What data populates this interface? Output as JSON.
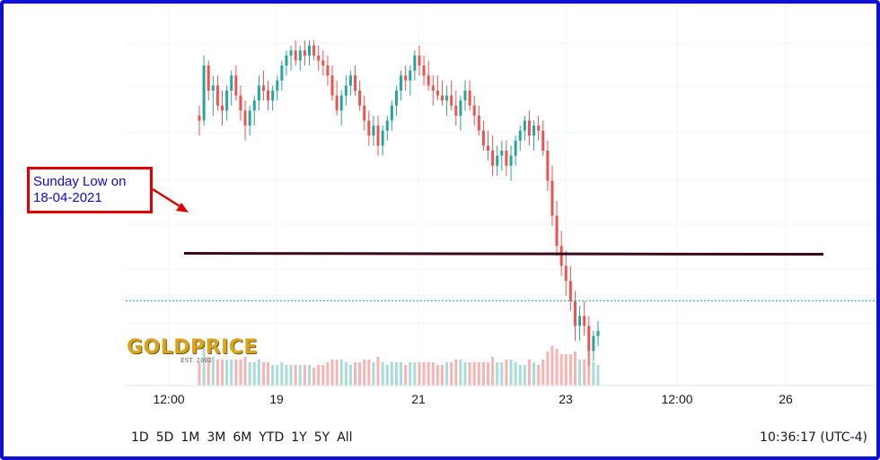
{
  "chart_data": {
    "type": "candlestick",
    "instrument": "Gold price",
    "x_tick_labels": [
      "12:00",
      "19",
      "21",
      "23",
      "12:00",
      "26"
    ],
    "annotation_level_label": "Sunday Low on 18-04-2021",
    "candles": [
      [
        1778,
        1780,
        1774,
        1777
      ],
      [
        1777,
        1790,
        1776,
        1788
      ],
      [
        1788,
        1789,
        1781,
        1783
      ],
      [
        1783,
        1786,
        1778,
        1784
      ],
      [
        1784,
        1786,
        1779,
        1780
      ],
      [
        1780,
        1783,
        1776,
        1779
      ],
      [
        1779,
        1784,
        1777,
        1783
      ],
      [
        1783,
        1787,
        1780,
        1786
      ],
      [
        1786,
        1788,
        1781,
        1782
      ],
      [
        1782,
        1784,
        1777,
        1779
      ],
      [
        1779,
        1781,
        1773,
        1776
      ],
      [
        1776,
        1780,
        1774,
        1779
      ],
      [
        1779,
        1782,
        1776,
        1781
      ],
      [
        1781,
        1786,
        1779,
        1784
      ],
      [
        1784,
        1787,
        1781,
        1783
      ],
      [
        1783,
        1785,
        1779,
        1781
      ],
      [
        1781,
        1784,
        1779,
        1783
      ],
      [
        1783,
        1786,
        1781,
        1785
      ],
      [
        1785,
        1789,
        1783,
        1788
      ],
      [
        1788,
        1791,
        1786,
        1790
      ],
      [
        1790,
        1792,
        1787,
        1791
      ],
      [
        1791,
        1793,
        1788,
        1789
      ],
      [
        1789,
        1792,
        1787,
        1791
      ],
      [
        1791,
        1793,
        1788,
        1790
      ],
      [
        1790,
        1793,
        1788,
        1792
      ],
      [
        1792,
        1793,
        1789,
        1790
      ],
      [
        1790,
        1792,
        1787,
        1789
      ],
      [
        1789,
        1791,
        1786,
        1788
      ],
      [
        1788,
        1790,
        1784,
        1786
      ],
      [
        1786,
        1788,
        1781,
        1782
      ],
      [
        1782,
        1785,
        1778,
        1779
      ],
      [
        1779,
        1783,
        1776,
        1782
      ],
      [
        1782,
        1786,
        1780,
        1784
      ],
      [
        1784,
        1787,
        1782,
        1786
      ],
      [
        1786,
        1788,
        1782,
        1783
      ],
      [
        1783,
        1785,
        1779,
        1780
      ],
      [
        1780,
        1782,
        1775,
        1777
      ],
      [
        1777,
        1779,
        1772,
        1774
      ],
      [
        1774,
        1778,
        1772,
        1776
      ],
      [
        1776,
        1778,
        1770,
        1772
      ],
      [
        1772,
        1776,
        1770,
        1775
      ],
      [
        1775,
        1778,
        1773,
        1777
      ],
      [
        1777,
        1781,
        1775,
        1780
      ],
      [
        1780,
        1784,
        1778,
        1783
      ],
      [
        1783,
        1787,
        1781,
        1786
      ],
      [
        1786,
        1788,
        1783,
        1785
      ],
      [
        1785,
        1788,
        1782,
        1787
      ],
      [
        1787,
        1791,
        1785,
        1790
      ],
      [
        1790,
        1792,
        1786,
        1788
      ],
      [
        1788,
        1790,
        1784,
        1786
      ],
      [
        1786,
        1789,
        1783,
        1784
      ],
      [
        1784,
        1786,
        1780,
        1783
      ],
      [
        1783,
        1786,
        1781,
        1782
      ],
      [
        1782,
        1785,
        1780,
        1781
      ],
      [
        1781,
        1784,
        1778,
        1782
      ],
      [
        1782,
        1785,
        1779,
        1780
      ],
      [
        1780,
        1783,
        1776,
        1778
      ],
      [
        1778,
        1782,
        1775,
        1781
      ],
      [
        1781,
        1785,
        1779,
        1783
      ],
      [
        1783,
        1785,
        1779,
        1780
      ],
      [
        1780,
        1782,
        1776,
        1778
      ],
      [
        1778,
        1780,
        1774,
        1775
      ],
      [
        1775,
        1777,
        1771,
        1772
      ],
      [
        1772,
        1775,
        1769,
        1771
      ],
      [
        1771,
        1774,
        1766,
        1768
      ],
      [
        1768,
        1772,
        1766,
        1770
      ],
      [
        1770,
        1773,
        1767,
        1771
      ],
      [
        1771,
        1773,
        1766,
        1768
      ],
      [
        1768,
        1772,
        1765,
        1770
      ],
      [
        1770,
        1774,
        1768,
        1773
      ],
      [
        1773,
        1776,
        1771,
        1775
      ],
      [
        1775,
        1778,
        1773,
        1777
      ],
      [
        1777,
        1779,
        1772,
        1774
      ],
      [
        1774,
        1777,
        1771,
        1776
      ],
      [
        1776,
        1778,
        1773,
        1775
      ],
      [
        1775,
        1777,
        1770,
        1771
      ],
      [
        1771,
        1773,
        1763,
        1765
      ],
      [
        1765,
        1768,
        1756,
        1758
      ],
      [
        1758,
        1761,
        1750,
        1752
      ],
      [
        1752,
        1755,
        1746,
        1748
      ],
      [
        1748,
        1751,
        1742,
        1745
      ],
      [
        1745,
        1748,
        1739,
        1741
      ],
      [
        1741,
        1743,
        1733,
        1736
      ],
      [
        1736,
        1740,
        1733,
        1738
      ],
      [
        1738,
        1741,
        1734,
        1736
      ],
      [
        1736,
        1738,
        1728,
        1731
      ],
      [
        1731,
        1735,
        1729,
        1734
      ],
      [
        1734,
        1737,
        1732,
        1735
      ]
    ],
    "ylim": [
      1725,
      1800
    ],
    "reference_level": 1750.5,
    "dotted_level": 1741
  },
  "logo": {
    "word": "GOLDPRICE",
    "est": "EST. 2002"
  },
  "toolbar": {
    "ranges": [
      "1D",
      "5D",
      "1M",
      "3M",
      "6M",
      "YTD",
      "1Y",
      "5Y",
      "All"
    ],
    "clock": "10:36:17 (UTC-4)"
  },
  "annotation": {
    "line1": "Sunday Low on",
    "line2": "18-04-2021"
  },
  "colors": {
    "up": "#26a69a",
    "down": "#ef5350",
    "frame": "#1010d0",
    "annotation_border": "#e00000",
    "annotation_text": "#0a0adc",
    "reference_line": "#3a0a1a",
    "dotted_line": "#26a69a"
  }
}
